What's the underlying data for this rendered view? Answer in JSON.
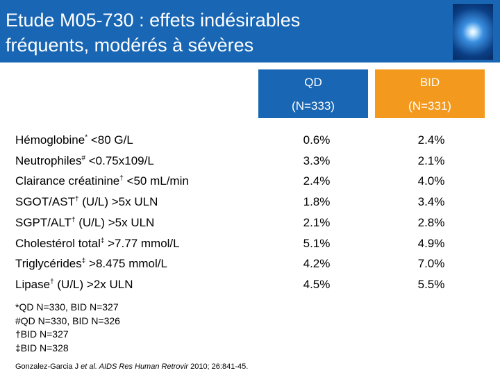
{
  "header": {
    "title_lines": [
      "Etude M05-730 : effets indésirables",
      "fréquents, modérés à sévères"
    ]
  },
  "table": {
    "columns": [
      {
        "name": "QD",
        "n": "(N=333)"
      },
      {
        "name": "BID",
        "n": "(N=331)"
      }
    ],
    "rows": [
      {
        "label": "Hémoglobine",
        "sup": "*",
        "rest": " <80 G/L",
        "values": [
          "0.6%",
          "2.4%"
        ]
      },
      {
        "label": "Neutrophiles",
        "sup": "#",
        "rest": " <0.75x109/L",
        "values": [
          "3.3%",
          "2.1%"
        ]
      },
      {
        "label": "Clairance créatinine",
        "sup": "†",
        "rest": " <50 mL/min",
        "values": [
          "2.4%",
          "4.0%"
        ]
      },
      {
        "label": "SGOT/AST",
        "sup": "†",
        "rest": " (U/L) >5x ULN",
        "values": [
          "1.8%",
          "3.4%"
        ]
      },
      {
        "label": "SGPT/ALT",
        "sup": "†",
        "rest": " (U/L) >5x ULN",
        "values": [
          "2.1%",
          "2.8%"
        ]
      },
      {
        "label": "Cholestérol total",
        "sup": "‡",
        "rest": " >7.77 mmol/L",
        "values": [
          "5.1%",
          "4.9%"
        ]
      },
      {
        "label": "Triglycérides",
        "sup": "‡",
        "rest": " >8.475 mmol/L",
        "values": [
          "4.2%",
          "7.0%"
        ]
      },
      {
        "label": "Lipase",
        "sup": "†",
        "rest": " (U/L) >2x ULN",
        "values": [
          "4.5%",
          "5.5%"
        ]
      }
    ]
  },
  "footnotes": [
    "*QD N=330, BID N=327",
    "#QD N=330, BID N=326",
    "†BID N=327",
    "‡BID N=328"
  ],
  "reference": [
    "Gonzalez-Garcia J ",
    "et al. AIDS Res Human Retrovir",
    " 2010; 26:841-45."
  ]
}
